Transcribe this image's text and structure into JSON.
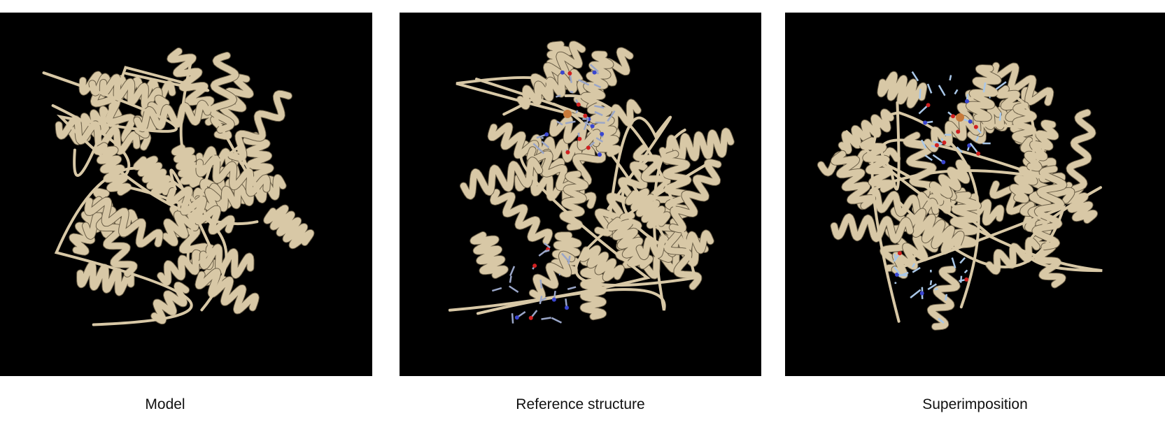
{
  "panels": [
    {
      "id": "model",
      "caption": "Model",
      "ribbon_color": "#d8c8a6",
      "ligand_color": null
    },
    {
      "id": "reference",
      "caption": "Reference structure",
      "ribbon_color": "#d8c8a6",
      "ligand_color": "#9aa6c8"
    },
    {
      "id": "superimposition",
      "caption": "Superimposition",
      "ribbon_color": "#d8c8a6",
      "ligand_color": "#a9c7e8"
    }
  ],
  "background_color": "#000000",
  "accent_atom_colors": {
    "oxygen": "#d02020",
    "nitrogen": "#3a46d0",
    "iron": "#c87a3a"
  }
}
